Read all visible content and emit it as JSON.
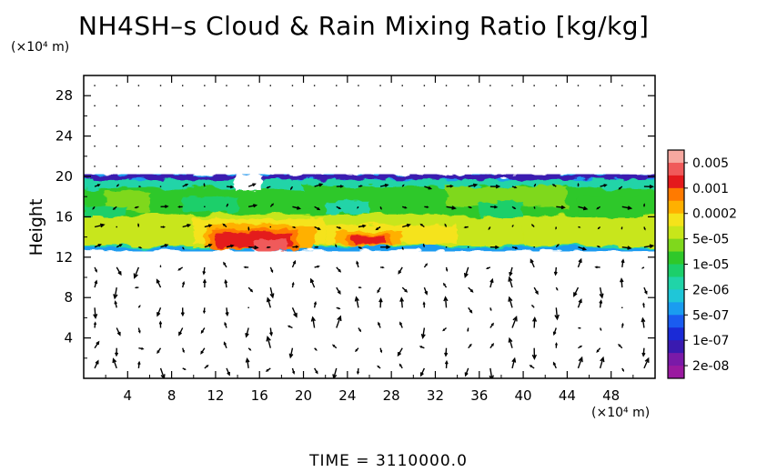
{
  "chart_data": {
    "type": "heatmap",
    "title": "NH4SH–s Cloud & Rain Mixing Ratio [kg/kg]",
    "ylabel": "Height",
    "yunits": "(×10⁴ m)",
    "xunits": "(×10⁴ m)",
    "xlim": [
      0,
      52
    ],
    "ylim": [
      0,
      30
    ],
    "xticks": [
      "4",
      "8",
      "12",
      "16",
      "20",
      "24",
      "28",
      "32",
      "36",
      "40",
      "44",
      "48"
    ],
    "yticks": [
      "4",
      "8",
      "12",
      "16",
      "20",
      "24",
      "28"
    ],
    "colorbar": {
      "labels": [
        "0.005",
        "0.001",
        "0.0002",
        "5e-05",
        "1e-05",
        "2e-06",
        "5e-07",
        "1e-07",
        "2e-08"
      ],
      "colors": [
        "#f7a8a0",
        "#f05a5a",
        "#e41a1c",
        "#ff7a00",
        "#ffb000",
        "#f5e31a",
        "#c8e61a",
        "#7fd81c",
        "#2fc82a",
        "#1ccf6a",
        "#20d4a8",
        "#1fc6d8",
        "#1a9cf0",
        "#1a5cf0",
        "#1a2ad6",
        "#3a1ab0",
        "#7a1aa8",
        "#9a1aa0"
      ]
    },
    "layers": [
      {
        "name": "cloud-band",
        "ybottom": 13,
        "ytop": 20,
        "mixing_ratio": "1e-05"
      },
      {
        "name": "dense-core",
        "x": [
          12,
          20
        ],
        "y": [
          13,
          15
        ],
        "mixing_ratio": "0.001"
      },
      {
        "name": "dense-core",
        "x": [
          24,
          28
        ],
        "y": [
          13,
          15
        ],
        "mixing_ratio": "0.0002"
      }
    ]
  },
  "footer": {
    "time_label": "TIME = 3110000.0"
  }
}
